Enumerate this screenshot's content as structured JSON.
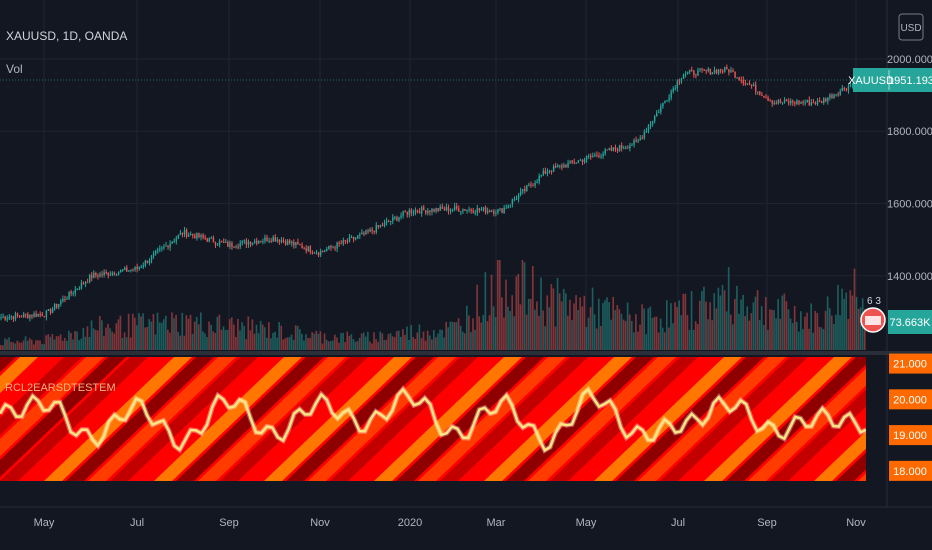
{
  "header": {
    "title": "XAUUSD, 1D, OANDA",
    "vol_label": "Vol"
  },
  "price_scale": {
    "currency": "USD",
    "ticks": [
      "2000.000",
      "1800.000",
      "1600.000",
      "1400.000"
    ],
    "tick_values": [
      2000,
      1800,
      1600,
      1400
    ]
  },
  "badges": {
    "symbol": "XAUUSD",
    "last_price": "1951.193",
    "volume": "73.663K",
    "events": "6 3",
    "symbol_color": "#26a69a",
    "flag_color": "#ef5350"
  },
  "indicator": {
    "label": "RCL2EARSDTESTEM",
    "scale_ticks": [
      "21.000",
      "20.000",
      "19.000",
      "18.000"
    ],
    "tick_values": [
      21,
      20,
      19,
      18
    ],
    "line_color": "#ffe680",
    "heat_colors": [
      "#ff0000",
      "#ff4500",
      "#ff8c00",
      "#b80000",
      "#7a0000"
    ]
  },
  "time_axis": [
    "May",
    "Jul",
    "Sep",
    "Nov",
    "2020",
    "Mar",
    "May",
    "Jul",
    "Sep",
    "Nov"
  ],
  "chart_data": [
    {
      "type": "candlestick",
      "title": "XAUUSD, 1D, OANDA",
      "x": [
        "2019-04",
        "2019-05",
        "2019-06",
        "2019-07",
        "2019-08",
        "2019-09",
        "2019-10",
        "2019-11",
        "2019-12",
        "2020-01",
        "2020-02",
        "2020-03",
        "2020-04",
        "2020-05",
        "2020-06",
        "2020-07",
        "2020-08",
        "2020-09",
        "2020-10",
        "2020-11"
      ],
      "close": [
        1285,
        1295,
        1400,
        1420,
        1520,
        1485,
        1505,
        1465,
        1515,
        1580,
        1585,
        1580,
        1690,
        1730,
        1770,
        1960,
        1970,
        1880,
        1880,
        1951
      ],
      "ylim": [
        1250,
        2080
      ],
      "ylabel": "USD"
    },
    {
      "type": "bar",
      "title": "Vol",
      "x": [
        "2019-04",
        "2019-05",
        "2019-06",
        "2019-07",
        "2019-08",
        "2019-09",
        "2019-10",
        "2019-11",
        "2019-12",
        "2020-01",
        "2020-02",
        "2020-03",
        "2020-04",
        "2020-05",
        "2020-06",
        "2020-07",
        "2020-08",
        "2020-09",
        "2020-10",
        "2020-11"
      ],
      "values": [
        8000,
        10000,
        22000,
        25000,
        28000,
        24000,
        20000,
        14000,
        12000,
        18000,
        22000,
        70000,
        50000,
        42000,
        30000,
        38000,
        55000,
        40000,
        30000,
        73663
      ]
    },
    {
      "type": "line",
      "title": "RCL2EARSDTESTEM",
      "x": [
        "2019-04",
        "2019-05",
        "2019-06",
        "2019-07",
        "2019-08",
        "2019-09",
        "2019-10",
        "2019-11",
        "2019-12",
        "2020-01",
        "2020-02",
        "2020-03",
        "2020-04",
        "2020-05",
        "2020-06",
        "2020-07",
        "2020-08",
        "2020-09",
        "2020-10",
        "2020-11"
      ],
      "values": [
        19.6,
        19.9,
        18.9,
        19.8,
        18.8,
        20.0,
        19.0,
        19.9,
        19.3,
        20.1,
        19.0,
        19.9,
        18.8,
        20.1,
        19.0,
        19.3,
        19.9,
        19.1,
        19.5,
        19.3
      ],
      "ylim": [
        17.8,
        21.1
      ]
    }
  ]
}
